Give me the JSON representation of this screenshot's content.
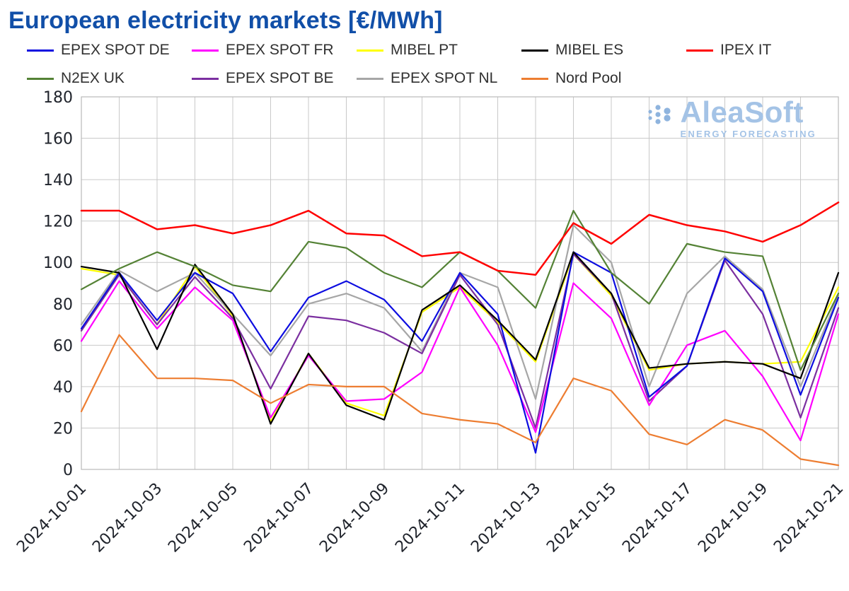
{
  "chart": {
    "title": "European electricity markets [€/MWh]"
  },
  "logo": {
    "name": "AleaSoft",
    "tagline": "ENERGY FORECASTING",
    "color": "#a4c3e6"
  },
  "chart_data": {
    "type": "line",
    "title": "European electricity markets [€/MWh]",
    "unit": "€/MWh",
    "x": [
      "2024-10-01",
      "2024-10-02",
      "2024-10-03",
      "2024-10-04",
      "2024-10-05",
      "2024-10-06",
      "2024-10-07",
      "2024-10-08",
      "2024-10-09",
      "2024-10-10",
      "2024-10-11",
      "2024-10-12",
      "2024-10-13",
      "2024-10-14",
      "2024-10-15",
      "2024-10-16",
      "2024-10-17",
      "2024-10-18",
      "2024-10-19",
      "2024-10-20",
      "2024-10-21"
    ],
    "x_tick_every": 2,
    "ylim": [
      0,
      180
    ],
    "ytick_step": 20,
    "grid": true,
    "legend_position": "top",
    "series": [
      {
        "name": "EPEX SPOT DE",
        "color": "#0d0de0",
        "values": [
          68,
          95,
          72,
          95,
          85,
          57,
          83,
          91,
          82,
          62,
          95,
          75,
          8,
          105,
          95,
          35,
          50,
          102,
          86,
          36,
          83
        ]
      },
      {
        "name": "EPEX SPOT FR",
        "color": "#ff00ff",
        "values": [
          62,
          91,
          68,
          88,
          72,
          25,
          55,
          33,
          34,
          47,
          88,
          60,
          18,
          90,
          73,
          31,
          60,
          67,
          45,
          14,
          75
        ]
      },
      {
        "name": "MIBEL PT",
        "color": "#ffff00",
        "values": [
          97,
          94,
          70,
          98,
          74,
          23,
          56,
          32,
          26,
          76,
          88,
          71,
          52,
          104,
          84,
          48,
          51,
          52,
          51,
          52,
          88
        ]
      },
      {
        "name": "MIBEL ES",
        "color": "#000000",
        "values": [
          98,
          95,
          58,
          99,
          75,
          22,
          56,
          31,
          24,
          77,
          89,
          72,
          53,
          105,
          85,
          49,
          51,
          52,
          51,
          44,
          95
        ]
      },
      {
        "name": "IPEX IT",
        "color": "#ff0000",
        "values": [
          125,
          125,
          116,
          118,
          114,
          118,
          125,
          114,
          113,
          103,
          105,
          96,
          94,
          119,
          109,
          123,
          118,
          115,
          110,
          118,
          129
        ]
      },
      {
        "name": "N2EX UK",
        "color": "#548235",
        "values": [
          87,
          97,
          105,
          98,
          89,
          86,
          110,
          107,
          95,
          88,
          105,
          96,
          78,
          125,
          95,
          80,
          109,
          105,
          103,
          48,
          85
        ]
      },
      {
        "name": "EPEX SPOT BE",
        "color": "#7b2fa0",
        "values": [
          67,
          94,
          70,
          93,
          73,
          39,
          74,
          72,
          66,
          56,
          94,
          70,
          20,
          104,
          85,
          33,
          50,
          101,
          75,
          25,
          78
        ]
      },
      {
        "name": "EPEX SPOT NL",
        "color": "#a6a6a6",
        "values": [
          70,
          96,
          86,
          95,
          75,
          55,
          80,
          85,
          78,
          57,
          95,
          88,
          34,
          118,
          100,
          40,
          85,
          103,
          87,
          40,
          84
        ]
      },
      {
        "name": "Nord Pool",
        "color": "#ed7d31",
        "values": [
          28,
          65,
          44,
          44,
          43,
          32,
          41,
          40,
          40,
          27,
          24,
          22,
          13,
          44,
          38,
          17,
          12,
          24,
          19,
          5,
          2
        ]
      }
    ],
    "draw_order": [
      2,
      7,
      6,
      1,
      0,
      3,
      5,
      8,
      4
    ]
  }
}
